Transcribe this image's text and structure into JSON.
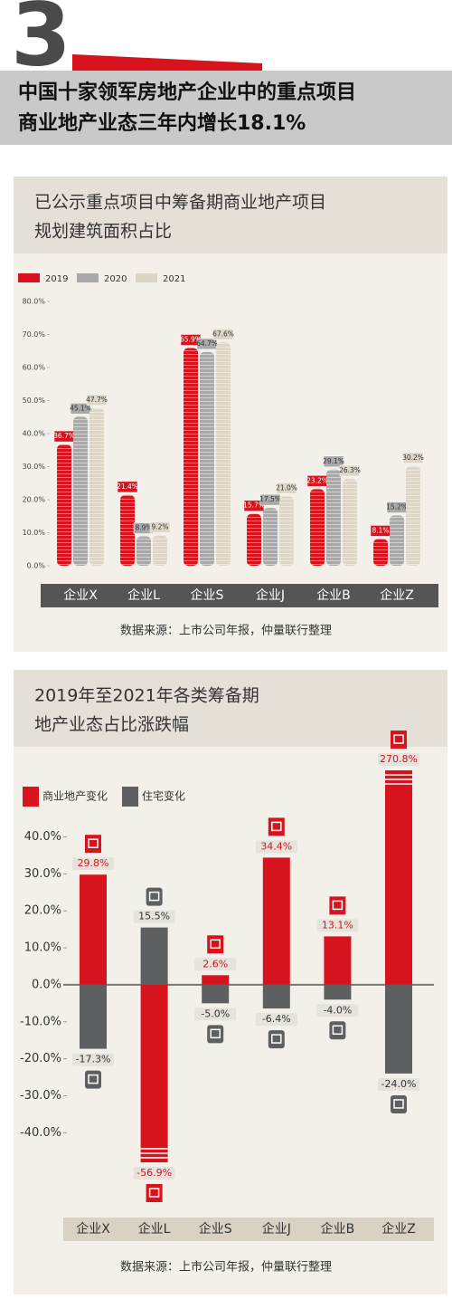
{
  "header": {
    "number": "3",
    "title_lines": [
      "中国十家领军房地产企业中的重点项目",
      "商业地产业态三年内增长18.1%"
    ]
  },
  "chart_data": [
    {
      "type": "bar",
      "title_lines": [
        "已公示重点项目中筹备期商业地产项目",
        "规划建筑面积占比"
      ],
      "categories": [
        "企业X",
        "企业L",
        "企业S",
        "企业J",
        "企业B",
        "企业Z"
      ],
      "series": [
        {
          "name": "2019",
          "color": "#d7141d",
          "values": [
            36.7,
            21.4,
            65.9,
            15.7,
            23.2,
            8.1
          ],
          "value_labels": [
            "36.7%",
            "21.4%",
            "65.9%",
            "15.7%",
            "23.2%",
            "8.1%"
          ]
        },
        {
          "name": "2020",
          "color": "#a9a9aa",
          "values": [
            45.1,
            8.9,
            64.7,
            17.5,
            29.1,
            15.2
          ],
          "value_labels": [
            "45.1%",
            "8.9%",
            "64.7%",
            "17.5%",
            "29.1%",
            "15.2%"
          ]
        },
        {
          "name": "2021",
          "color": "#ddd6c6",
          "values": [
            47.7,
            9.2,
            67.6,
            21.0,
            26.3,
            30.2
          ],
          "value_labels": [
            "47.7%",
            "9.2%",
            "67.6%",
            "21.0%",
            "26.3%",
            "30.2%"
          ]
        }
      ],
      "ylim": [
        0,
        80
      ],
      "yticks": [
        {
          "value": 0,
          "label": "0.0%"
        },
        {
          "value": 10,
          "label": "10.0%"
        },
        {
          "value": 20,
          "label": "20.0%"
        },
        {
          "value": 30,
          "label": "30.0%"
        },
        {
          "value": 40,
          "label": "40.0%"
        },
        {
          "value": 50,
          "label": "50.0%"
        },
        {
          "value": 60,
          "label": "60.0%"
        },
        {
          "value": 70,
          "label": "70.0%"
        },
        {
          "value": 80,
          "label": "80.0%"
        }
      ],
      "source": "数据来源：上市公司年报，仲量联行整理"
    },
    {
      "type": "diverging-bar",
      "title_lines": [
        "2019年至2021年各类筹备期",
        "地产业态占比涨跌幅"
      ],
      "categories": [
        "企业X",
        "企业L",
        "企业S",
        "企业J",
        "企业B",
        "企业Z"
      ],
      "series": [
        {
          "name": "商业地产变化",
          "color": "#d7141d",
          "values": [
            29.8,
            -56.9,
            2.6,
            34.4,
            13.1,
            270.8
          ],
          "value_labels": [
            "29.8%",
            "-56.9%",
            "2.6%",
            "34.4%",
            "13.1%",
            "270.8%"
          ]
        },
        {
          "name": "住宅变化",
          "color": "#5e5f61",
          "values": [
            -17.3,
            15.5,
            -5.0,
            -6.4,
            -4.0,
            -24.0
          ],
          "value_labels": [
            "-17.3%",
            "15.5%",
            "-5.0%",
            "-6.4%",
            "-4.0%",
            "-24.0%"
          ]
        }
      ],
      "ylim": [
        -48,
        58
      ],
      "yticks": [
        {
          "value": 40,
          "label": "40.0%"
        },
        {
          "value": 30,
          "label": "30.0%"
        },
        {
          "value": 20,
          "label": "20.0%"
        },
        {
          "value": 10,
          "label": "10.0%"
        },
        {
          "value": 0,
          "label": "0.0%"
        },
        {
          "value": -10,
          "label": "-10.0%"
        },
        {
          "value": -20,
          "label": "-20.0%"
        },
        {
          "value": -30,
          "label": "-30.0%"
        },
        {
          "value": -40,
          "label": "-40.0%"
        }
      ],
      "source": "数据来源：上市公司年报，仲量联行整理"
    }
  ]
}
